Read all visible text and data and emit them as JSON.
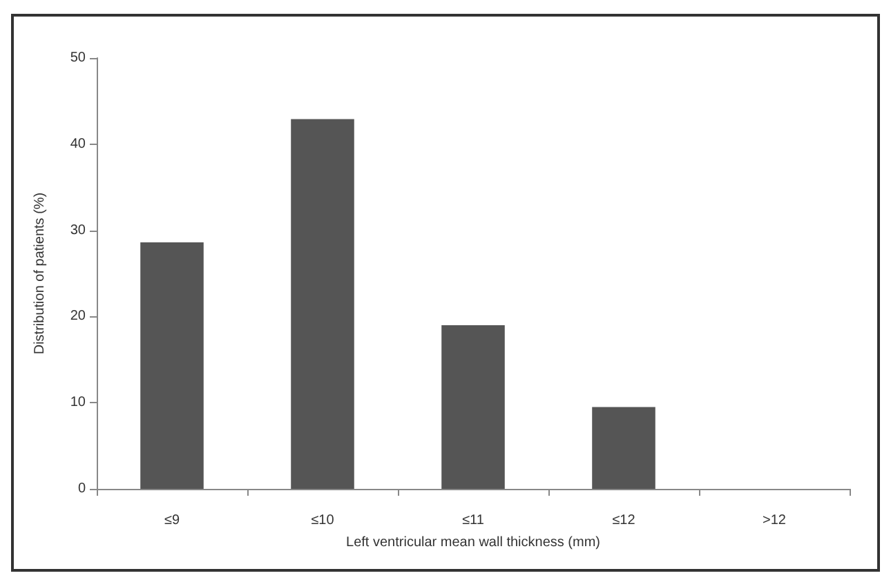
{
  "chart_data": {
    "type": "bar",
    "xlabel": "Left ventricular mean wall thickness (mm)",
    "ylabel": "Distribution of patients (%)",
    "categories": [
      "≤9",
      "≤10",
      "≤11",
      "≤12",
      ">12"
    ],
    "values": [
      28.6,
      42.9,
      19.0,
      9.5,
      0
    ],
    "color": "#555555",
    "ylim": [
      0,
      50
    ],
    "yticks": [
      0,
      10,
      20,
      30,
      40,
      50
    ],
    "grid": false
  }
}
